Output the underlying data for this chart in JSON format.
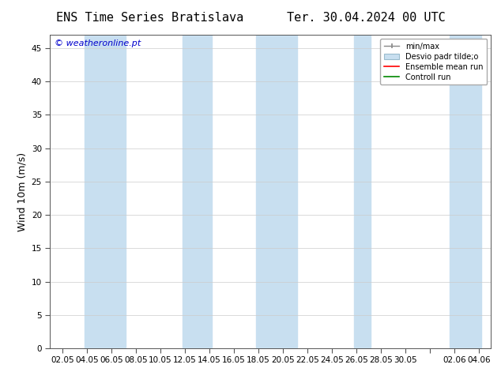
{
  "title_left": "ENS Time Series Bratislava",
  "title_right": "Ter. 30.04.2024 00 UTC",
  "ylabel": "Wind 10m (m/s)",
  "watermark": "© weatheronline.pt",
  "watermark_color": "#0000cc",
  "ylim": [
    0,
    47
  ],
  "yticks": [
    0,
    5,
    10,
    15,
    20,
    25,
    30,
    35,
    40,
    45
  ],
  "xtick_labels": [
    "02.05",
    "04.05",
    "06.05",
    "08.05",
    "10.05",
    "12.05",
    "14.05",
    "16.05",
    "18.05",
    "20.05",
    "22.05",
    "24.05",
    "26.05",
    "28.05",
    "30.05",
    "",
    "02.06",
    "04.06"
  ],
  "bg_color": "#ffffff",
  "plot_bg_color": "#ffffff",
  "band_color_rgba": [
    0.78,
    0.88,
    0.96,
    1.0
  ],
  "band_edge_color": "#aabbd0",
  "legend_labels": [
    "min/max",
    "Desvio padr tilde;o",
    "Ensemble mean run",
    "Controll run"
  ],
  "legend_line_colors": [
    "#888888",
    "#aabbdd",
    "#ff0000",
    "#008000"
  ],
  "title_fontsize": 11,
  "label_fontsize": 9,
  "tick_fontsize": 7.5
}
